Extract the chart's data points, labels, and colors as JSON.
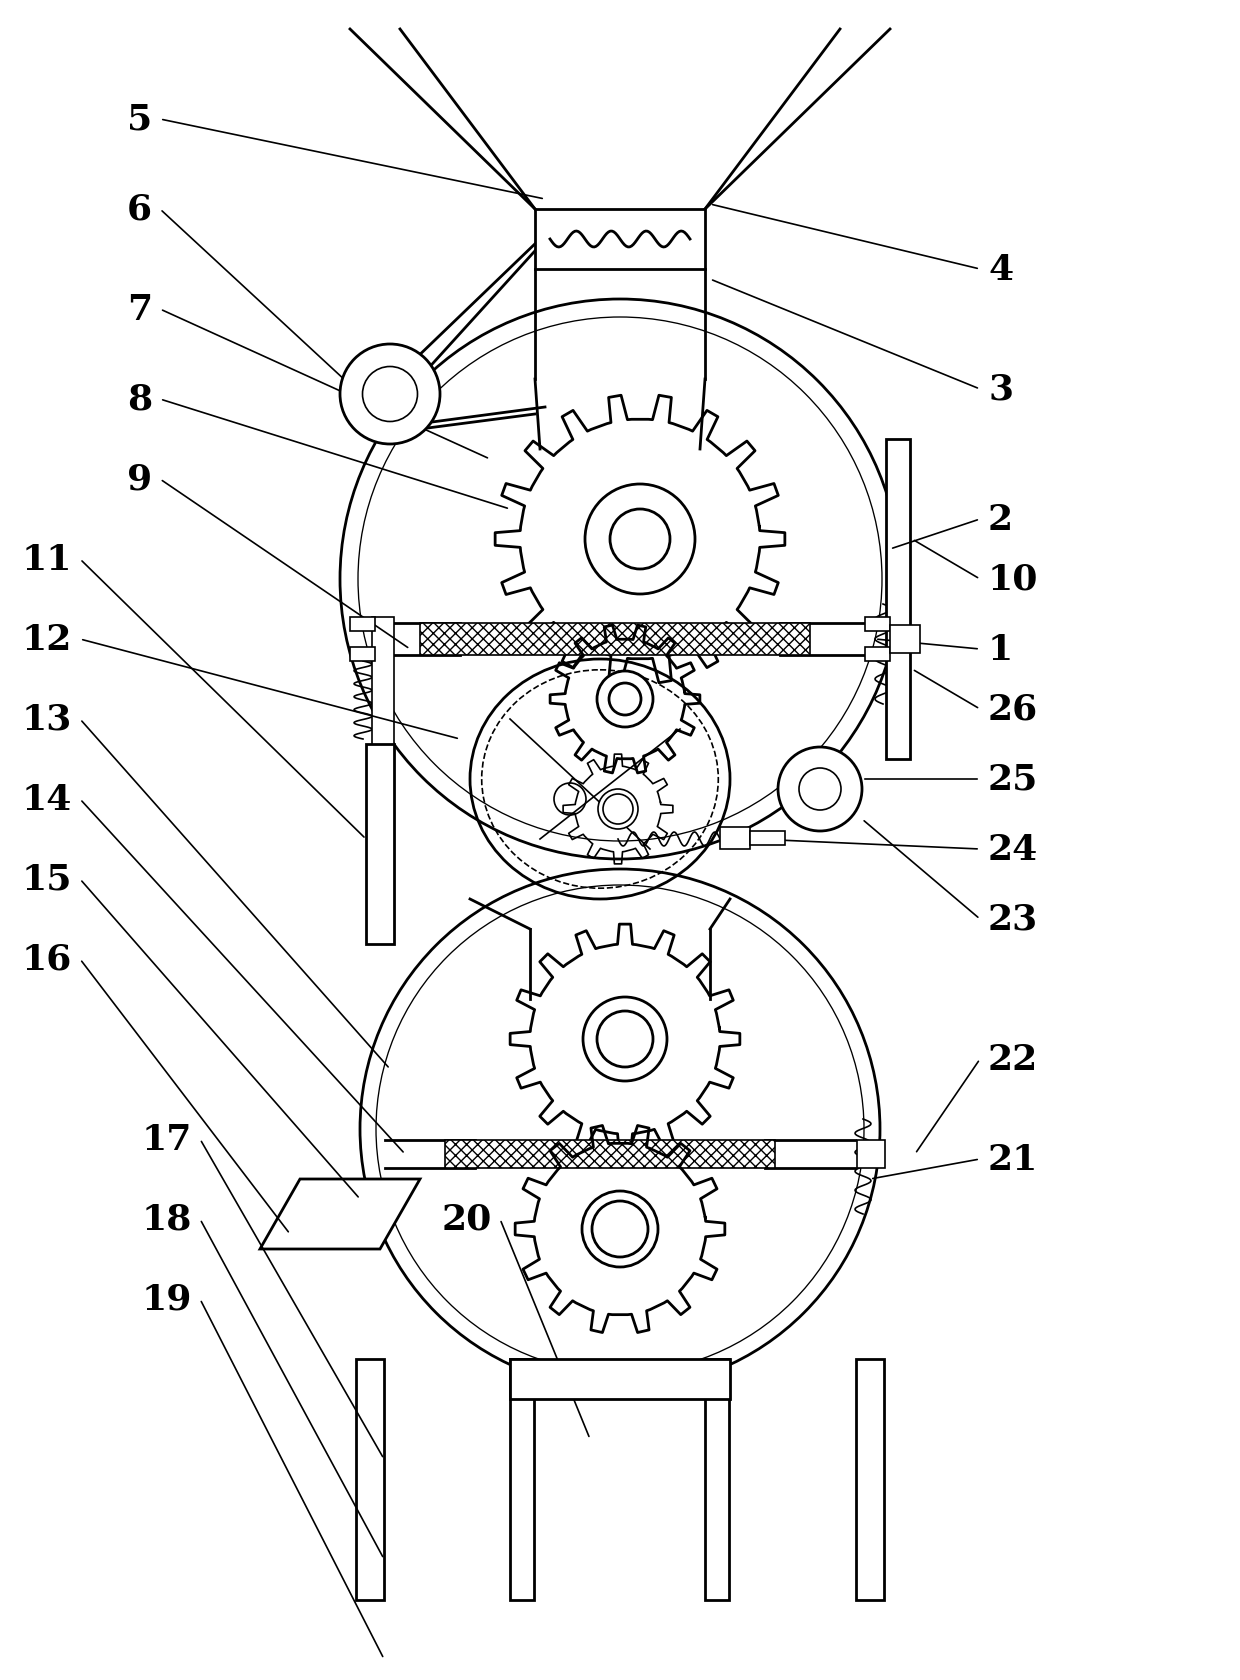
{
  "bg_color": "#ffffff",
  "line_color": "#000000",
  "fig_width": 12.4,
  "fig_height": 16.81,
  "dpi": 100
}
